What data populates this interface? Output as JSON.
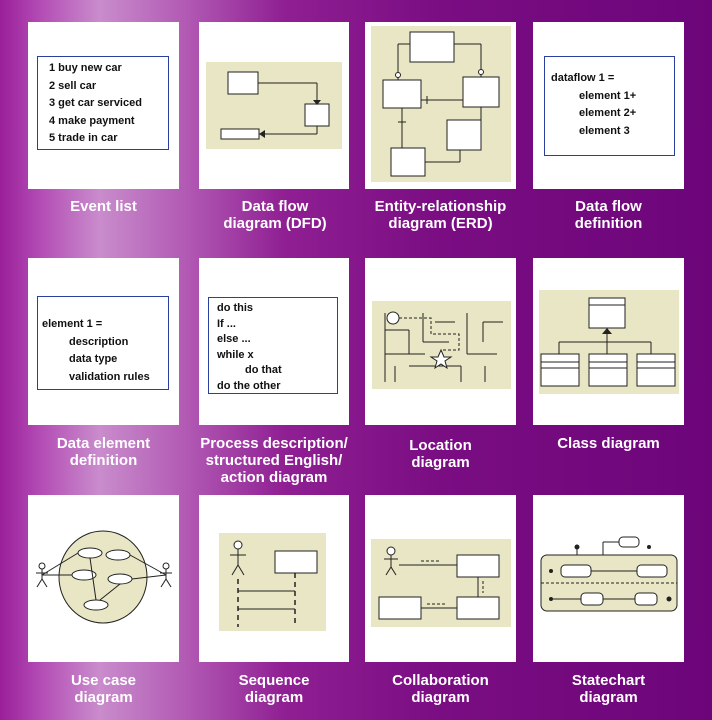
{
  "tiles": {
    "event_list": {
      "label": "Event list",
      "lines": [
        "1 buy new car",
        "2 sell car",
        "3 get car serviced",
        "4 make payment",
        "5 trade in car"
      ]
    },
    "dfd": {
      "label": "Data flow\ndiagram (DFD)"
    },
    "erd": {
      "label": "Entity-relationship\ndiagram (ERD)"
    },
    "data_flow_definition": {
      "label": "Data flow\ndefinition",
      "lines": [
        "dataflow 1 =",
        "element 1+",
        "element 2+",
        "element 3"
      ]
    },
    "data_element_definition": {
      "label": "Data element\ndefinition",
      "lines": [
        "element 1 =",
        "description",
        "data type",
        "validation rules"
      ]
    },
    "process_description": {
      "label": "Process description/\nstructured English/\naction diagram",
      "lines": [
        "do this",
        "If ...",
        "else ...",
        "while x",
        "do that",
        "do the other"
      ]
    },
    "location": {
      "label": "Location\ndiagram"
    },
    "class": {
      "label": "Class diagram"
    },
    "use_case": {
      "label": "Use case\ndiagram"
    },
    "sequence": {
      "label": "Sequence\ndiagram"
    },
    "collaboration": {
      "label": "Collaboration\ndiagram"
    },
    "statechart": {
      "label": "Statechart\ndiagram"
    }
  },
  "colors": {
    "background_purple": "#7a0d82",
    "diagram_pane": "#e8e6c4",
    "text_box_border": "#2a3f9e",
    "label_text": "#ffffff"
  }
}
